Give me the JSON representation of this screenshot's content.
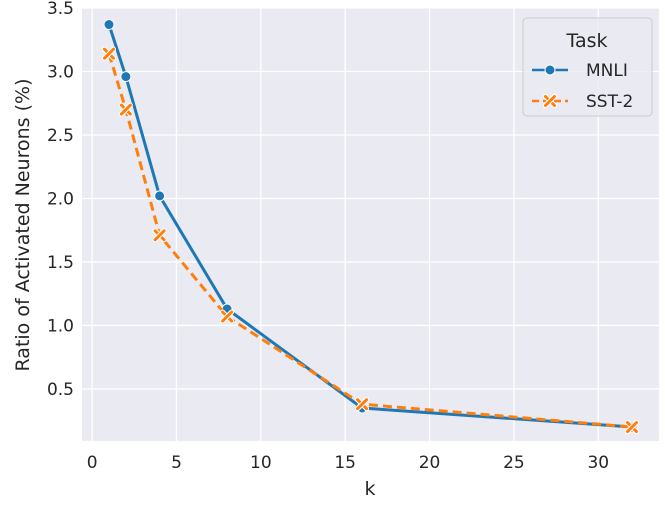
{
  "chart_data": {
    "type": "line",
    "xlabel": "k",
    "ylabel": "Ratio of Activated Neurons (%)",
    "xlim": [
      -0.6,
      33.6
    ],
    "ylim": [
      0.09,
      3.5
    ],
    "x_ticks": [
      0,
      5,
      10,
      15,
      20,
      25,
      30
    ],
    "x_tick_labels": [
      "0",
      "5",
      "10",
      "15",
      "20",
      "25",
      "30"
    ],
    "y_ticks": [
      0.5,
      1.0,
      1.5,
      2.0,
      2.5,
      3.0,
      3.5
    ],
    "y_tick_labels": [
      "0.5",
      "1.0",
      "1.5",
      "2.0",
      "2.5",
      "3.0",
      "3.5"
    ],
    "grid": true,
    "legend": {
      "title": "Task",
      "position": "top-right"
    },
    "series": [
      {
        "name": "MNLI",
        "color": "#1f77b4",
        "marker": "circle",
        "line_style": "solid",
        "x": [
          1,
          2,
          4,
          8,
          16,
          32
        ],
        "y": [
          3.37,
          2.96,
          2.02,
          1.13,
          0.35,
          0.2
        ]
      },
      {
        "name": "SST-2",
        "color": "#ff7f0e",
        "marker": "x",
        "line_style": "dashed",
        "x": [
          1,
          2,
          4,
          8,
          16,
          32
        ],
        "y": [
          3.14,
          2.7,
          1.71,
          1.07,
          0.38,
          0.2
        ]
      }
    ]
  }
}
